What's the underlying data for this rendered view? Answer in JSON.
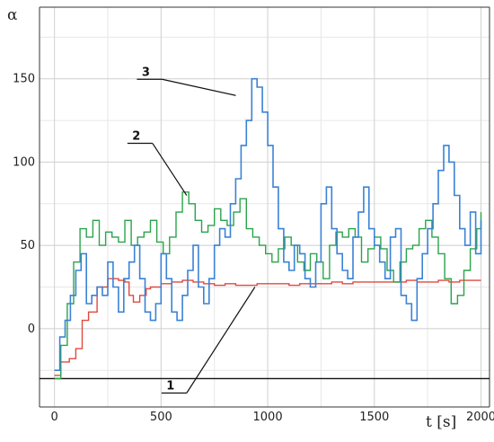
{
  "chart_data": {
    "type": "line",
    "ylabel": "α",
    "xlabel": "t [s]",
    "xlim": [
      -70,
      2040
    ],
    "ylim": [
      -47,
      193
    ],
    "xticks": [
      0,
      500,
      1000,
      1500,
      2000
    ],
    "yticks": [
      0,
      50,
      100,
      150
    ],
    "grid": true,
    "baseline_y": -30,
    "annotations": [
      {
        "label": "1",
        "series_index": 0,
        "x": 940,
        "y": 25
      },
      {
        "label": "2",
        "series_index": 1,
        "x": 620,
        "y": 80
      },
      {
        "label": "3",
        "series_index": 2,
        "x": 850,
        "y": 140
      }
    ],
    "series": [
      {
        "color": "#e0493f",
        "x": [
          0,
          30,
          50,
          70,
          100,
          130,
          160,
          200,
          250,
          300,
          330,
          350,
          370,
          400,
          430,
          450,
          500,
          550,
          600,
          650,
          700,
          750,
          800,
          850,
          900,
          950,
          1000,
          1050,
          1100,
          1150,
          1200,
          1250,
          1300,
          1350,
          1400,
          1450,
          1500,
          1550,
          1600,
          1650,
          1700,
          1750,
          1800,
          1850,
          1900,
          1950,
          2000
        ],
        "y": [
          -28,
          -20,
          -20,
          -18,
          -12,
          5,
          10,
          25,
          30,
          29,
          28,
          20,
          16,
          20,
          24,
          25,
          27,
          28,
          29,
          28,
          27,
          26,
          27,
          26,
          26,
          27,
          27,
          27,
          26,
          27,
          27,
          27,
          28,
          27,
          28,
          28,
          28,
          28,
          28,
          29,
          28,
          28,
          29,
          28,
          29,
          29,
          29
        ]
      },
      {
        "color": "#2aa44a",
        "x": [
          0,
          30,
          60,
          90,
          120,
          150,
          180,
          210,
          240,
          270,
          300,
          330,
          360,
          390,
          420,
          450,
          480,
          510,
          540,
          570,
          600,
          630,
          660,
          690,
          720,
          750,
          780,
          810,
          840,
          870,
          900,
          930,
          960,
          990,
          1020,
          1050,
          1080,
          1110,
          1140,
          1170,
          1200,
          1230,
          1260,
          1290,
          1320,
          1350,
          1380,
          1410,
          1440,
          1470,
          1500,
          1530,
          1560,
          1590,
          1620,
          1650,
          1680,
          1710,
          1740,
          1770,
          1800,
          1830,
          1860,
          1890,
          1920,
          1950,
          1980,
          2000
        ],
        "y": [
          -30,
          -10,
          15,
          40,
          60,
          55,
          65,
          50,
          58,
          55,
          52,
          65,
          50,
          55,
          58,
          65,
          52,
          45,
          55,
          70,
          82,
          75,
          65,
          58,
          62,
          72,
          65,
          62,
          70,
          78,
          60,
          55,
          50,
          45,
          40,
          48,
          55,
          50,
          40,
          35,
          45,
          40,
          30,
          50,
          58,
          55,
          60,
          55,
          40,
          48,
          55,
          48,
          35,
          28,
          40,
          48,
          50,
          60,
          65,
          55,
          45,
          30,
          15,
          20,
          35,
          48,
          60,
          70
        ]
      },
      {
        "color": "#3a82d6",
        "x": [
          0,
          25,
          50,
          75,
          100,
          125,
          150,
          175,
          200,
          225,
          250,
          275,
          300,
          325,
          350,
          375,
          400,
          425,
          450,
          475,
          500,
          525,
          550,
          575,
          600,
          625,
          650,
          675,
          700,
          725,
          750,
          775,
          800,
          825,
          850,
          875,
          900,
          925,
          950,
          975,
          1000,
          1025,
          1050,
          1075,
          1100,
          1125,
          1150,
          1175,
          1200,
          1225,
          1250,
          1275,
          1300,
          1325,
          1350,
          1375,
          1400,
          1425,
          1450,
          1475,
          1500,
          1525,
          1550,
          1575,
          1600,
          1625,
          1650,
          1675,
          1700,
          1725,
          1750,
          1775,
          1800,
          1825,
          1850,
          1875,
          1900,
          1925,
          1950,
          1975,
          2000
        ],
        "y": [
          -25,
          -5,
          5,
          20,
          35,
          45,
          15,
          20,
          25,
          20,
          40,
          25,
          10,
          30,
          40,
          50,
          30,
          10,
          5,
          15,
          45,
          30,
          10,
          5,
          20,
          35,
          50,
          25,
          15,
          30,
          50,
          60,
          55,
          75,
          90,
          110,
          125,
          150,
          145,
          130,
          110,
          85,
          60,
          40,
          35,
          50,
          45,
          30,
          25,
          40,
          75,
          85,
          60,
          45,
          35,
          30,
          55,
          70,
          85,
          60,
          50,
          40,
          30,
          55,
          60,
          20,
          15,
          5,
          30,
          45,
          60,
          75,
          95,
          110,
          100,
          80,
          60,
          50,
          70,
          45,
          65
        ]
      }
    ]
  }
}
